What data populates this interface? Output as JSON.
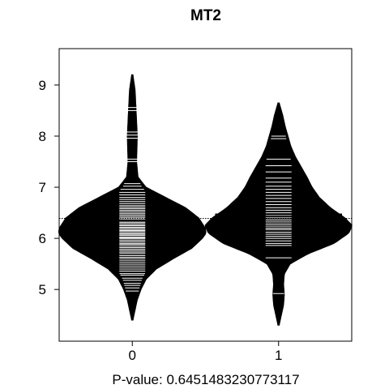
{
  "chart_data": {
    "type": "beanplot",
    "title": "MT2",
    "xlabel": "P-value: 0.6451483230773117",
    "ylabel": "",
    "categories": [
      "0",
      "1"
    ],
    "ylim": [
      4.2,
      9.5
    ],
    "yticks": [
      5,
      6,
      7,
      8,
      9
    ],
    "overall_mean": 6.39,
    "colors": {
      "bean": "#000000",
      "line": "#ffffff",
      "frame": "#000000"
    },
    "beans": [
      {
        "category": "0",
        "mean": 6.34,
        "min": 4.4,
        "max": 9.2,
        "density": [
          [
            4.4,
            0.0
          ],
          [
            4.6,
            0.03
          ],
          [
            4.8,
            0.06
          ],
          [
            5.0,
            0.11
          ],
          [
            5.2,
            0.18
          ],
          [
            5.4,
            0.32
          ],
          [
            5.6,
            0.55
          ],
          [
            5.8,
            0.8
          ],
          [
            6.0,
            0.95
          ],
          [
            6.1,
            1.0
          ],
          [
            6.2,
            0.99
          ],
          [
            6.4,
            0.9
          ],
          [
            6.6,
            0.72
          ],
          [
            6.8,
            0.45
          ],
          [
            7.0,
            0.18
          ],
          [
            7.2,
            0.07
          ],
          [
            7.5,
            0.05
          ],
          [
            8.0,
            0.06
          ],
          [
            8.3,
            0.05
          ],
          [
            8.6,
            0.04
          ],
          [
            8.9,
            0.03
          ],
          [
            9.2,
            0.0
          ]
        ],
        "observations": [
          4.97,
          5.03,
          5.08,
          5.12,
          5.18,
          5.22,
          5.28,
          5.31,
          5.36,
          5.4,
          5.44,
          5.48,
          5.52,
          5.56,
          5.6,
          5.63,
          5.66,
          5.7,
          5.73,
          5.76,
          5.79,
          5.82,
          5.85,
          5.88,
          5.9,
          5.93,
          5.96,
          5.99,
          6.01,
          6.03,
          6.06,
          6.08,
          6.1,
          6.13,
          6.15,
          6.17,
          6.2,
          6.22,
          6.25,
          6.27,
          6.3,
          6.32,
          6.35,
          6.38,
          6.4,
          6.43,
          6.46,
          6.49,
          6.52,
          6.55,
          6.58,
          6.61,
          6.64,
          6.68,
          6.72,
          6.76,
          6.8,
          6.85,
          6.9,
          6.96,
          7.02,
          7.07,
          7.5,
          7.55,
          7.96,
          8.02,
          8.08,
          8.5,
          8.56
        ]
      },
      {
        "category": "1",
        "mean": 6.47,
        "min": 4.3,
        "max": 8.65,
        "density": [
          [
            4.3,
            0.0
          ],
          [
            4.5,
            0.03
          ],
          [
            4.7,
            0.06
          ],
          [
            4.9,
            0.07
          ],
          [
            5.1,
            0.06
          ],
          [
            5.3,
            0.07
          ],
          [
            5.5,
            0.15
          ],
          [
            5.7,
            0.4
          ],
          [
            5.9,
            0.75
          ],
          [
            6.1,
            0.95
          ],
          [
            6.25,
            1.0
          ],
          [
            6.4,
            0.9
          ],
          [
            6.6,
            0.7
          ],
          [
            6.8,
            0.55
          ],
          [
            7.0,
            0.45
          ],
          [
            7.2,
            0.38
          ],
          [
            7.4,
            0.3
          ],
          [
            7.6,
            0.22
          ],
          [
            7.8,
            0.16
          ],
          [
            8.0,
            0.12
          ],
          [
            8.2,
            0.08
          ],
          [
            8.4,
            0.05
          ],
          [
            8.65,
            0.0
          ]
        ],
        "observations": [
          4.92,
          5.62,
          5.86,
          5.9,
          5.95,
          6.0,
          6.04,
          6.08,
          6.12,
          6.17,
          6.2,
          6.24,
          6.28,
          6.32,
          6.36,
          6.4,
          6.45,
          6.5,
          6.55,
          6.6,
          6.66,
          6.72,
          6.78,
          6.84,
          6.9,
          6.96,
          7.02,
          7.1,
          7.18,
          7.3,
          7.42,
          7.55,
          7.95,
          8.0
        ]
      }
    ]
  }
}
